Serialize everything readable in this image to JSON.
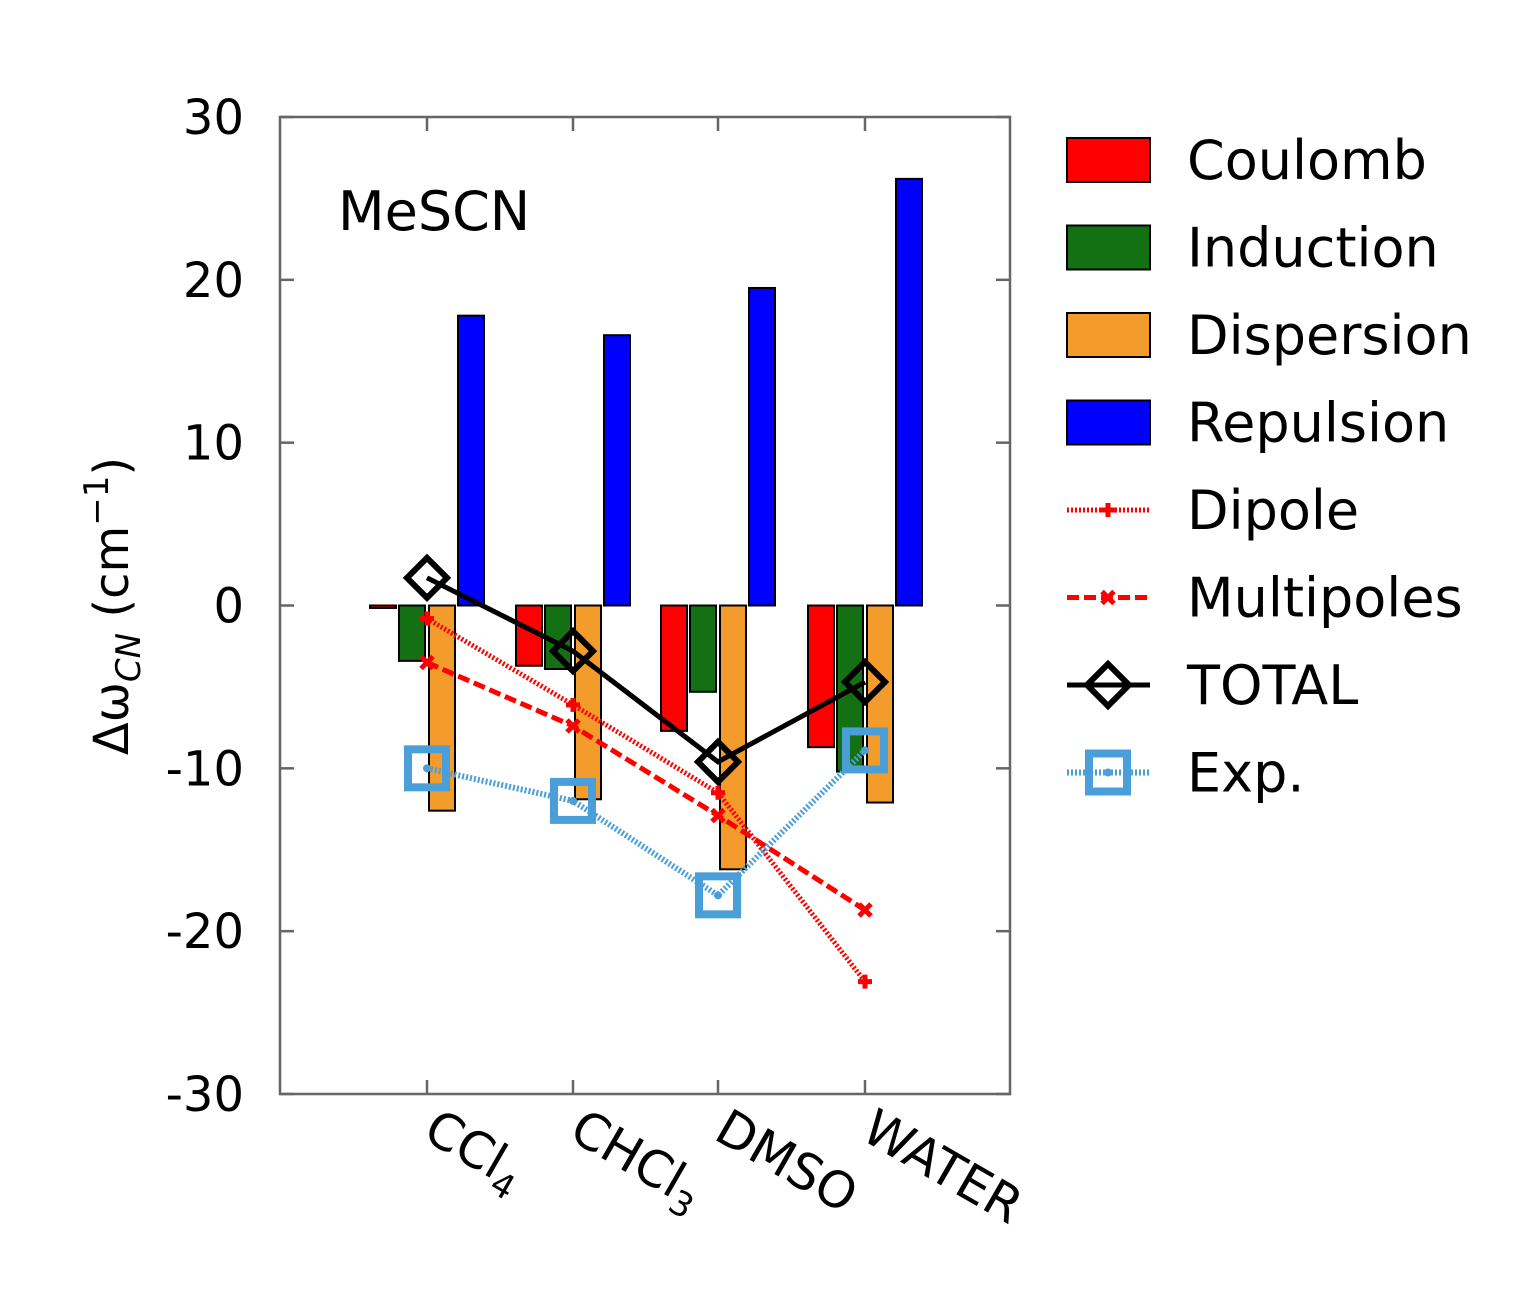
{
  "chart_data": {
    "type": "bar",
    "annotation": "MeSCN",
    "ylabel_symbol": "Δω",
    "ylabel_subscript": "CN",
    "ylabel_unit_open": " (cm",
    "ylabel_unit_sup": "−1",
    "ylabel_unit_close": ")",
    "ylim": [
      -30,
      30
    ],
    "yticks": [
      -30,
      -20,
      -10,
      0,
      10,
      20,
      30
    ],
    "categories": [
      {
        "base": "CCl",
        "sub": "4"
      },
      {
        "base": "CHCl",
        "sub": "3"
      },
      {
        "base": "DMSO",
        "sub": ""
      },
      {
        "base": "WATER",
        "sub": ""
      }
    ],
    "bar_series": [
      {
        "name": "Coulomb",
        "color": "#ff0000",
        "values": [
          0.0,
          -3.7,
          -7.7,
          -8.7
        ]
      },
      {
        "name": "Induction",
        "color": "#137013",
        "values": [
          -3.4,
          -3.9,
          -5.3,
          -10.2
        ]
      },
      {
        "name": "Dispersion",
        "color": "#f39c2c",
        "values": [
          -12.6,
          -11.9,
          -16.2,
          -12.1
        ]
      },
      {
        "name": "Repulsion",
        "color": "#0000ff",
        "values": [
          17.8,
          16.6,
          19.5,
          26.2
        ]
      }
    ],
    "line_series": [
      {
        "name": "Dipole",
        "color": "#ff0000",
        "marker": "plus",
        "style": "dotted",
        "values": [
          -0.8,
          -6.1,
          -11.5,
          -23.1
        ]
      },
      {
        "name": "Multipoles",
        "color": "#ff0000",
        "marker": "cross",
        "style": "dashed",
        "values": [
          -3.5,
          -7.4,
          -12.9,
          -18.7
        ]
      },
      {
        "name": "TOTAL",
        "color": "#000000",
        "marker": "diamond",
        "style": "solid",
        "values": [
          1.7,
          -2.8,
          -9.6,
          -4.7
        ]
      },
      {
        "name": "Exp.",
        "color": "#4b9fd8",
        "marker": "square",
        "style": "dotted",
        "values": [
          -10.0,
          -12.0,
          -17.8,
          -8.9
        ]
      }
    ]
  }
}
